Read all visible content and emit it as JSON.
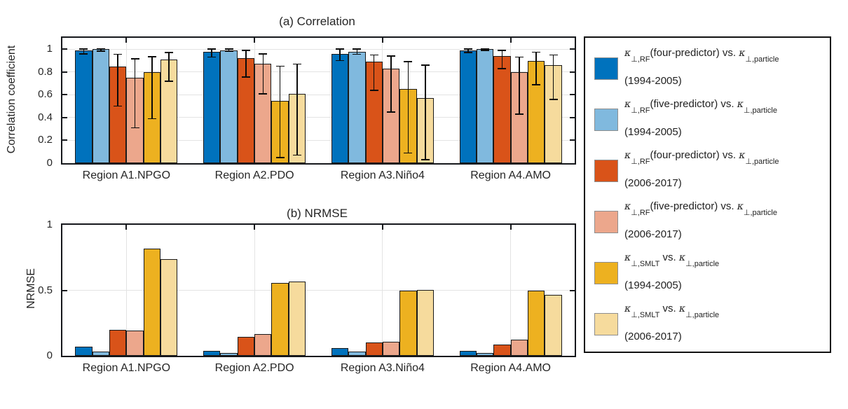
{
  "figure_titles": {
    "panel_a": "(a) Correlation",
    "panel_b": "(b) NRMSE"
  },
  "chart_data": [
    {
      "type": "bar",
      "title": "(a) Correlation",
      "ylabel": "Correlation coefficient",
      "categories": [
        "Region A1.NPGO",
        "Region A2.PDO",
        "Region A3.Niño4",
        "Region A4.AMO"
      ],
      "yticks": [
        "0",
        "0.2",
        "0.4",
        "0.6",
        "0.8",
        "1"
      ],
      "ylim": [
        0,
        1.1
      ],
      "grid": true,
      "error_bars": true,
      "series": [
        {
          "name": "κ⊥,RF(four-predictor) vs. κ⊥,particle (1994-2005)",
          "color": "#0072BD",
          "values": [
            0.99,
            0.98,
            0.96,
            0.99
          ],
          "errors": [
            [
              0.96,
              1.0
            ],
            [
              0.93,
              1.0
            ],
            [
              0.9,
              1.0
            ],
            [
              0.97,
              1.0
            ]
          ]
        },
        {
          "name": "κ⊥,RF(five-predictor) vs. κ⊥,particle (1994-2005)",
          "color": "#80B9DE",
          "values": [
            1.0,
            0.99,
            0.98,
            1.0
          ],
          "errors": [
            [
              0.985,
              1.0
            ],
            [
              0.98,
              1.0
            ],
            [
              0.955,
              1.0
            ],
            [
              0.99,
              1.005
            ]
          ]
        },
        {
          "name": "κ⊥,RF(four-predictor) vs. κ⊥,particle (2006-2017)",
          "color": "#D95319",
          "values": [
            0.85,
            0.92,
            0.89,
            0.94
          ],
          "errors": [
            [
              0.5,
              0.955
            ],
            [
              0.755,
              0.99
            ],
            [
              0.64,
              0.95
            ],
            [
              0.83,
              0.99
            ]
          ]
        },
        {
          "name": "κ⊥,RF(five-predictor) vs. κ⊥,particle (2006-2017)",
          "color": "#ECA78C",
          "values": [
            0.75,
            0.87,
            0.83,
            0.8
          ],
          "errors": [
            [
              0.31,
              0.915
            ],
            [
              0.61,
              0.96
            ],
            [
              0.45,
              0.94
            ],
            [
              0.43,
              0.93
            ]
          ]
        },
        {
          "name": "κ⊥,SMLT vs. κ⊥,particle (1994-2005)",
          "color": "#EDB120",
          "values": [
            0.8,
            0.55,
            0.65,
            0.9
          ],
          "errors": [
            [
              0.39,
              0.935
            ],
            [
              0.05,
              0.85
            ],
            [
              0.09,
              0.89
            ],
            [
              0.69,
              0.975
            ]
          ]
        },
        {
          "name": "κ⊥,SMLT vs. κ⊥,particle (2006-2017)",
          "color": "#F6DB9D",
          "values": [
            0.91,
            0.61,
            0.57,
            0.86
          ],
          "errors": [
            [
              0.72,
              0.97
            ],
            [
              0.07,
              0.87
            ],
            [
              0.03,
              0.86
            ],
            [
              0.56,
              0.95
            ]
          ]
        }
      ]
    },
    {
      "type": "bar",
      "title": "(b) NRMSE",
      "ylabel": "NRMSE",
      "categories": [
        "Region A1.NPGO",
        "Region A2.PDO",
        "Region A3.Niño4",
        "Region A4.AMO"
      ],
      "yticks": [
        "0",
        "0.5",
        "1"
      ],
      "ylim": [
        0,
        1
      ],
      "grid": true,
      "error_bars": false,
      "series": [
        {
          "name": "κ⊥,RF(four-predictor) vs. κ⊥,particle (1994-2005)",
          "color": "#0072BD",
          "values": [
            0.07,
            0.035,
            0.06,
            0.04
          ]
        },
        {
          "name": "κ⊥,RF(five-predictor) vs. κ⊥,particle (1994-2005)",
          "color": "#80B9DE",
          "values": [
            0.03,
            0.02,
            0.03,
            0.02
          ]
        },
        {
          "name": "κ⊥,RF(four-predictor) vs. κ⊥,particle (2006-2017)",
          "color": "#D95319",
          "values": [
            0.2,
            0.145,
            0.1,
            0.085
          ]
        },
        {
          "name": "κ⊥,RF(five-predictor) vs. κ⊥,particle (2006-2017)",
          "color": "#ECA78C",
          "values": [
            0.19,
            0.165,
            0.105,
            0.125
          ]
        },
        {
          "name": "κ⊥,SMLT vs. κ⊥,particle (1994-2005)",
          "color": "#EDB120",
          "values": [
            0.82,
            0.555,
            0.5,
            0.5
          ]
        },
        {
          "name": "κ⊥,SMLT vs. κ⊥,particle (2006-2017)",
          "color": "#F6DB9D",
          "values": [
            0.74,
            0.565,
            0.505,
            0.465
          ]
        }
      ]
    }
  ],
  "legend": {
    "position": "right-outside",
    "entries": [
      {
        "color": "#0072BD",
        "k": "κ",
        "sub1": "⊥,RF",
        "mid": "(four-predictor) vs. ",
        "sub2": "⊥,particle",
        "years": "(1994-2005)"
      },
      {
        "color": "#80B9DE",
        "k": "κ",
        "sub1": "⊥,RF",
        "mid": "(five-predictor) vs. ",
        "sub2": "⊥,particle",
        "years": "(1994-2005)"
      },
      {
        "color": "#D95319",
        "k": "κ",
        "sub1": "⊥,RF",
        "mid": "(four-predictor) vs. ",
        "sub2": "⊥,particle",
        "years": "(2006-2017)"
      },
      {
        "color": "#ECA78C",
        "k": "κ",
        "sub1": "⊥,RF",
        "mid": "(five-predictor) vs. ",
        "sub2": "⊥,particle",
        "years": "(2006-2017)"
      },
      {
        "color": "#EDB120",
        "k": "κ",
        "sub1": "⊥,SMLT",
        "mid": " vs. ",
        "sub2": "⊥,particle",
        "years": "(1994-2005)"
      },
      {
        "color": "#F6DB9D",
        "k": "κ",
        "sub1": "⊥,SMLT",
        "mid": " vs. ",
        "sub2": "⊥,particle",
        "years": "(2006-2017)"
      }
    ]
  }
}
